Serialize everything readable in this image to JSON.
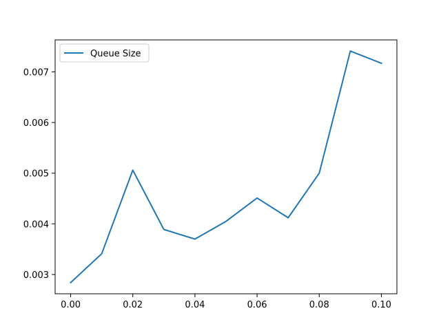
{
  "chart_data": {
    "type": "line",
    "title": "",
    "xlabel": "",
    "ylabel": "",
    "x": [
      0.0,
      0.01,
      0.02,
      0.03,
      0.04,
      0.05,
      0.06,
      0.07,
      0.08,
      0.09,
      0.1
    ],
    "series": [
      {
        "name": "Queue Size",
        "color": "#1f77b4",
        "values": [
          0.00284,
          0.00341,
          0.00506,
          0.00389,
          0.0037,
          0.00405,
          0.00451,
          0.00412,
          0.005,
          0.00741,
          0.00717
        ]
      }
    ],
    "xlim": [
      -0.005,
      0.105
    ],
    "ylim": [
      0.00262,
      0.00763
    ],
    "xticks": [
      0.0,
      0.02,
      0.04,
      0.06,
      0.08,
      0.1
    ],
    "xtick_labels": [
      "0.00",
      "0.02",
      "0.04",
      "0.06",
      "0.08",
      "0.10"
    ],
    "yticks": [
      0.003,
      0.004,
      0.005,
      0.006,
      0.007
    ],
    "ytick_labels": [
      "0.003",
      "0.004",
      "0.005",
      "0.006",
      "0.007"
    ],
    "grid": false,
    "legend": {
      "position": "upper-left"
    }
  }
}
